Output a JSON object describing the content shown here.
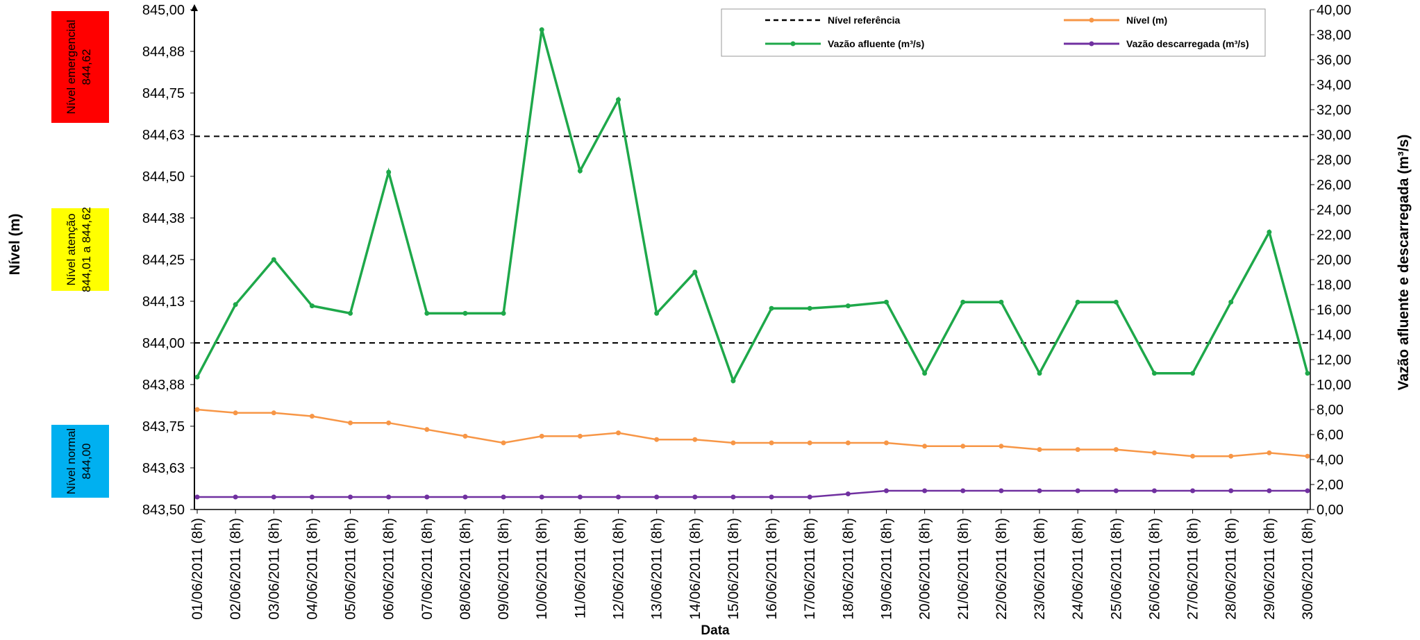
{
  "chart_data": {
    "type": "line",
    "ylabel": "Nível (m)",
    "y2label": "Vazão afluente e descarregada (m³/s)",
    "xlabel": "Data",
    "categories": [
      "01/06/2011 (8h)",
      "02/06/2011 (8h)",
      "03/06/2011 (8h)",
      "04/06/2011 (8h)",
      "05/06/2011 (8h)",
      "06/06/2011 (8h)",
      "07/06/2011 (8h)",
      "08/06/2011 (8h)",
      "09/06/2011 (8h)",
      "10/06/2011 (8h)",
      "11/06/2011 (8h)",
      "12/06/2011 (8h)",
      "13/06/2011 (8h)",
      "14/06/2011 (8h)",
      "15/06/2011 (8h)",
      "16/06/2011 (8h)",
      "17/06/2011 (8h)",
      "18/06/2011 (8h)",
      "19/06/2011 (8h)",
      "20/06/2011 (8h)",
      "21/06/2011 (8h)",
      "22/06/2011 (8h)",
      "23/06/2011 (8h)",
      "24/06/2011 (8h)",
      "25/06/2011 (8h)",
      "26/06/2011 (8h)",
      "27/06/2011 (8h)",
      "28/06/2011 (8h)",
      "29/06/2011 (8h)",
      "30/06/2011 (8h)"
    ],
    "ylim": [
      843.5,
      845.0
    ],
    "yticks": [
      {
        "value": 843.5,
        "label": "843,50"
      },
      {
        "value": 843.625,
        "label": "843,63"
      },
      {
        "value": 843.75,
        "label": "843,75"
      },
      {
        "value": 843.875,
        "label": "843,88"
      },
      {
        "value": 844.0,
        "label": "844,00"
      },
      {
        "value": 844.125,
        "label": "844,13"
      },
      {
        "value": 844.25,
        "label": "844,25"
      },
      {
        "value": 844.375,
        "label": "844,38"
      },
      {
        "value": 844.5,
        "label": "844,50"
      },
      {
        "value": 844.625,
        "label": "844,63"
      },
      {
        "value": 844.75,
        "label": "844,75"
      },
      {
        "value": 844.875,
        "label": "844,88"
      },
      {
        "value": 845.0,
        "label": "845,00"
      }
    ],
    "y2lim": [
      0,
      40
    ],
    "y2ticks": [
      {
        "value": 0,
        "label": "0,00"
      },
      {
        "value": 2,
        "label": "2,00"
      },
      {
        "value": 4,
        "label": "4,00"
      },
      {
        "value": 6,
        "label": "6,00"
      },
      {
        "value": 8,
        "label": "8,00"
      },
      {
        "value": 10,
        "label": "10,00"
      },
      {
        "value": 12,
        "label": "12,00"
      },
      {
        "value": 14,
        "label": "14,00"
      },
      {
        "value": 16,
        "label": "16,00"
      },
      {
        "value": 18,
        "label": "18,00"
      },
      {
        "value": 20,
        "label": "20,00"
      },
      {
        "value": 22,
        "label": "22,00"
      },
      {
        "value": 24,
        "label": "24,00"
      },
      {
        "value": 26,
        "label": "26,00"
      },
      {
        "value": 28,
        "label": "28,00"
      },
      {
        "value": 30,
        "label": "30,00"
      },
      {
        "value": 32,
        "label": "32,00"
      },
      {
        "value": 34,
        "label": "34,00"
      },
      {
        "value": 36,
        "label": "36,00"
      },
      {
        "value": 38,
        "label": "38,00"
      },
      {
        "value": 40,
        "label": "40,00"
      }
    ],
    "reference": {
      "name": "Nível referência",
      "color": "#000000",
      "values": [
        844.62,
        844.0
      ]
    },
    "series": [
      {
        "name": "Nível (m)",
        "color": "#f79646",
        "values": [
          843.8,
          843.79,
          843.79,
          843.78,
          843.76,
          843.76,
          843.74,
          843.72,
          843.7,
          843.72,
          843.72,
          843.73,
          843.71,
          843.71,
          843.7,
          843.7,
          843.7,
          843.7,
          843.7,
          843.69,
          843.69,
          843.69,
          843.68,
          843.68,
          843.68,
          843.67,
          843.66,
          843.66,
          843.67,
          843.66
        ]
      },
      {
        "name": "Vazão afluente (m³/s)",
        "color": "#1ea84a",
        "axis": "y2",
        "values": [
          10.6,
          16.4,
          20.0,
          16.3,
          15.7,
          27.0,
          15.7,
          15.7,
          15.7,
          38.4,
          27.1,
          32.8,
          15.7,
          19.0,
          10.3,
          16.1,
          16.1,
          16.3,
          16.6,
          10.9,
          16.6,
          16.6,
          10.9,
          16.6,
          16.6,
          10.9,
          10.9,
          16.6,
          22.2,
          10.9
        ]
      },
      {
        "name": "Vazão descarregada (m³/s)",
        "color": "#7030a0",
        "axis": "y2",
        "values": [
          1.0,
          1.0,
          1.0,
          1.0,
          1.0,
          1.0,
          1.0,
          1.0,
          1.0,
          1.0,
          1.0,
          1.0,
          1.0,
          1.0,
          1.0,
          1.0,
          1.0,
          1.25,
          1.5,
          1.5,
          1.5,
          1.5,
          1.5,
          1.5,
          1.5,
          1.5,
          1.5,
          1.5,
          1.5,
          1.5
        ]
      }
    ],
    "annotations": [
      {
        "lines": [
          "Nível emergencial",
          "844,62"
        ],
        "color": "#ff0000"
      },
      {
        "lines": [
          "Nível atenção",
          "844,01 a 844,62"
        ],
        "color": "#ffff00"
      },
      {
        "lines": [
          "Nível normal",
          "844,00"
        ],
        "color": "#00b0f0"
      }
    ]
  }
}
